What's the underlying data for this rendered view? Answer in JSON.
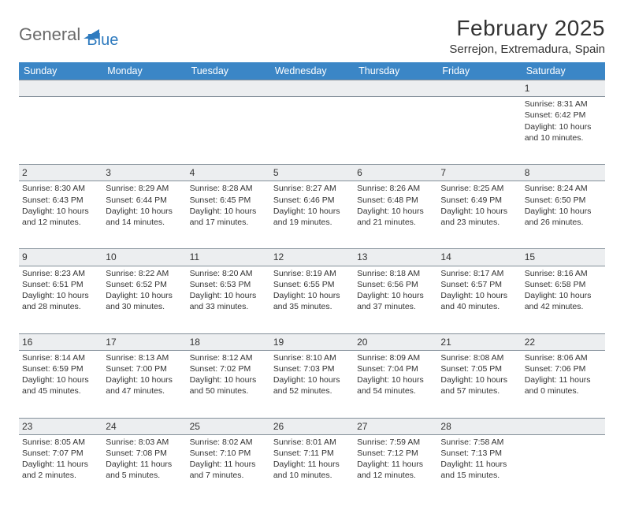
{
  "logo": {
    "text1": "General",
    "text2": "Blue",
    "color1": "#6a6a6a",
    "color2": "#2f7bbf"
  },
  "title": "February 2025",
  "location": "Serrejon, Extremadura, Spain",
  "header_bg": "#3b86c6",
  "header_fg": "#ffffff",
  "daynum_bg": "#eceef0",
  "border_color": "#838f99",
  "weekdays": [
    "Sunday",
    "Monday",
    "Tuesday",
    "Wednesday",
    "Thursday",
    "Friday",
    "Saturday"
  ],
  "weeks": [
    [
      null,
      null,
      null,
      null,
      null,
      null,
      {
        "n": "1",
        "sr": "8:31 AM",
        "ss": "6:42 PM",
        "dl": "10 hours and 10 minutes."
      }
    ],
    [
      {
        "n": "2",
        "sr": "8:30 AM",
        "ss": "6:43 PM",
        "dl": "10 hours and 12 minutes."
      },
      {
        "n": "3",
        "sr": "8:29 AM",
        "ss": "6:44 PM",
        "dl": "10 hours and 14 minutes."
      },
      {
        "n": "4",
        "sr": "8:28 AM",
        "ss": "6:45 PM",
        "dl": "10 hours and 17 minutes."
      },
      {
        "n": "5",
        "sr": "8:27 AM",
        "ss": "6:46 PM",
        "dl": "10 hours and 19 minutes."
      },
      {
        "n": "6",
        "sr": "8:26 AM",
        "ss": "6:48 PM",
        "dl": "10 hours and 21 minutes."
      },
      {
        "n": "7",
        "sr": "8:25 AM",
        "ss": "6:49 PM",
        "dl": "10 hours and 23 minutes."
      },
      {
        "n": "8",
        "sr": "8:24 AM",
        "ss": "6:50 PM",
        "dl": "10 hours and 26 minutes."
      }
    ],
    [
      {
        "n": "9",
        "sr": "8:23 AM",
        "ss": "6:51 PM",
        "dl": "10 hours and 28 minutes."
      },
      {
        "n": "10",
        "sr": "8:22 AM",
        "ss": "6:52 PM",
        "dl": "10 hours and 30 minutes."
      },
      {
        "n": "11",
        "sr": "8:20 AM",
        "ss": "6:53 PM",
        "dl": "10 hours and 33 minutes."
      },
      {
        "n": "12",
        "sr": "8:19 AM",
        "ss": "6:55 PM",
        "dl": "10 hours and 35 minutes."
      },
      {
        "n": "13",
        "sr": "8:18 AM",
        "ss": "6:56 PM",
        "dl": "10 hours and 37 minutes."
      },
      {
        "n": "14",
        "sr": "8:17 AM",
        "ss": "6:57 PM",
        "dl": "10 hours and 40 minutes."
      },
      {
        "n": "15",
        "sr": "8:16 AM",
        "ss": "6:58 PM",
        "dl": "10 hours and 42 minutes."
      }
    ],
    [
      {
        "n": "16",
        "sr": "8:14 AM",
        "ss": "6:59 PM",
        "dl": "10 hours and 45 minutes."
      },
      {
        "n": "17",
        "sr": "8:13 AM",
        "ss": "7:00 PM",
        "dl": "10 hours and 47 minutes."
      },
      {
        "n": "18",
        "sr": "8:12 AM",
        "ss": "7:02 PM",
        "dl": "10 hours and 50 minutes."
      },
      {
        "n": "19",
        "sr": "8:10 AM",
        "ss": "7:03 PM",
        "dl": "10 hours and 52 minutes."
      },
      {
        "n": "20",
        "sr": "8:09 AM",
        "ss": "7:04 PM",
        "dl": "10 hours and 54 minutes."
      },
      {
        "n": "21",
        "sr": "8:08 AM",
        "ss": "7:05 PM",
        "dl": "10 hours and 57 minutes."
      },
      {
        "n": "22",
        "sr": "8:06 AM",
        "ss": "7:06 PM",
        "dl": "11 hours and 0 minutes."
      }
    ],
    [
      {
        "n": "23",
        "sr": "8:05 AM",
        "ss": "7:07 PM",
        "dl": "11 hours and 2 minutes."
      },
      {
        "n": "24",
        "sr": "8:03 AM",
        "ss": "7:08 PM",
        "dl": "11 hours and 5 minutes."
      },
      {
        "n": "25",
        "sr": "8:02 AM",
        "ss": "7:10 PM",
        "dl": "11 hours and 7 minutes."
      },
      {
        "n": "26",
        "sr": "8:01 AM",
        "ss": "7:11 PM",
        "dl": "11 hours and 10 minutes."
      },
      {
        "n": "27",
        "sr": "7:59 AM",
        "ss": "7:12 PM",
        "dl": "11 hours and 12 minutes."
      },
      {
        "n": "28",
        "sr": "7:58 AM",
        "ss": "7:13 PM",
        "dl": "11 hours and 15 minutes."
      },
      null
    ]
  ],
  "labels": {
    "sunrise": "Sunrise: ",
    "sunset": "Sunset: ",
    "daylight": "Daylight: "
  }
}
